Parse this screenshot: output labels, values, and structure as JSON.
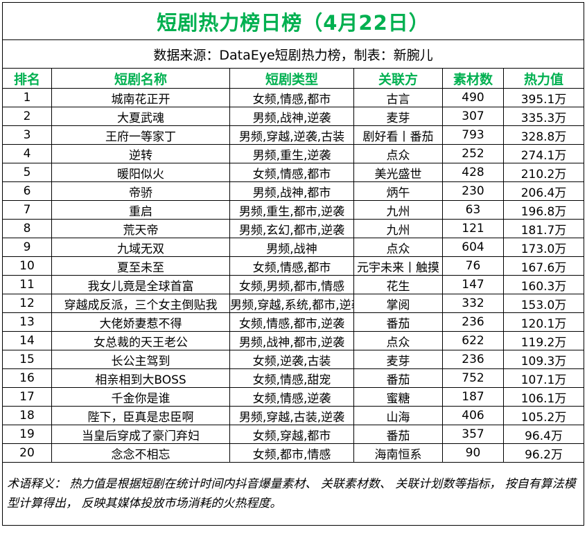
{
  "title": "短剧热力榜日榜（4月22日）",
  "source": "数据来源：DataEye短剧热力榜，制表：新腕儿",
  "headers": {
    "rank": "排名",
    "name": "短剧名称",
    "type": "短剧类型",
    "partner": "关联方",
    "material": "素材数",
    "heat": "热力值"
  },
  "rows": [
    {
      "rank": "1",
      "name": "城南花正开",
      "type": "女频,情感,都市",
      "partner": "古言",
      "material": "490",
      "heat": "395.1万"
    },
    {
      "rank": "2",
      "name": "大夏武魂",
      "type": "男频,战神,逆袭",
      "partner": "麦芽",
      "material": "307",
      "heat": "335.3万"
    },
    {
      "rank": "3",
      "name": "王府一等家丁",
      "type": "男频,穿越,逆袭,古装",
      "partner": "剧好看丨番茄",
      "material": "793",
      "heat": "328.8万"
    },
    {
      "rank": "4",
      "name": "逆转",
      "type": "男频,重生,逆袭",
      "partner": "点众",
      "material": "252",
      "heat": "274.1万"
    },
    {
      "rank": "5",
      "name": "暖阳似火",
      "type": "女频,情感,都市",
      "partner": "美光盛世",
      "material": "428",
      "heat": "210.2万"
    },
    {
      "rank": "6",
      "name": "帝骄",
      "type": "男频,战神,都市",
      "partner": "炳午",
      "material": "230",
      "heat": "206.4万"
    },
    {
      "rank": "7",
      "name": "重启",
      "type": "男频,重生,都市,逆袭",
      "partner": "九州",
      "material": "63",
      "heat": "196.8万"
    },
    {
      "rank": "8",
      "name": "荒天帝",
      "type": "男频,玄幻,都市,逆袭",
      "partner": "九州",
      "material": "121",
      "heat": "181.7万"
    },
    {
      "rank": "9",
      "name": "九域无双",
      "type": "男频,战神",
      "partner": "点众",
      "material": "604",
      "heat": "173.0万"
    },
    {
      "rank": "10",
      "name": "夏至未至",
      "type": "女频,情感,都市",
      "partner": "元宇未来丨触摸",
      "material": "76",
      "heat": "167.6万"
    },
    {
      "rank": "11",
      "name": "我女儿竟是全球首富",
      "type": "女频,男频,都市,情感",
      "partner": "花生",
      "material": "147",
      "heat": "160.3万"
    },
    {
      "rank": "12",
      "name": "穿越成反派，三个女主倒贴我",
      "type": "男频,穿越,系统,都市,逆袭",
      "partner": "掌阅",
      "material": "332",
      "heat": "153.0万"
    },
    {
      "rank": "13",
      "name": "大佬娇妻惹不得",
      "type": "女频,情感,都市,逆袭",
      "partner": "番茄",
      "material": "236",
      "heat": "120.1万"
    },
    {
      "rank": "14",
      "name": "女总裁的天王老公",
      "type": "男频,战神,都市,逆袭",
      "partner": "点众",
      "material": "622",
      "heat": "119.2万"
    },
    {
      "rank": "15",
      "name": "长公主驾到",
      "type": "女频,逆袭,古装",
      "partner": "麦芽",
      "material": "236",
      "heat": "109.3万"
    },
    {
      "rank": "16",
      "name": "相亲相到大BOSS",
      "type": "女频,情感,甜宠",
      "partner": "番茄",
      "material": "752",
      "heat": "107.1万"
    },
    {
      "rank": "17",
      "name": "千金你是谁",
      "type": "女频,情感,逆袭",
      "partner": "蜜糖",
      "material": "187",
      "heat": "106.1万"
    },
    {
      "rank": "18",
      "name": "陛下，臣真是忠臣啊",
      "type": "男频,穿越,古装,逆袭",
      "partner": "山海",
      "material": "406",
      "heat": "105.2万"
    },
    {
      "rank": "19",
      "name": "当皇后穿成了豪门弃妇",
      "type": "女频,穿越,都市",
      "partner": "番茄",
      "material": "357",
      "heat": "96.4万"
    },
    {
      "rank": "20",
      "name": "念念不相忘",
      "type": "女频,都市,情感",
      "partner": "海南恒系",
      "material": "90",
      "heat": "96.2万"
    }
  ],
  "note": "术语释义： 热力值是根据短剧在统计时间内抖音爆量素材、 关联素材数、 关联计划数等指标， 按自有算法模型计算得出， 反映其媒体投放市场消耗的火热程度。",
  "colors": {
    "accent": "#00b050",
    "text": "#000000",
    "border": "#000000"
  }
}
